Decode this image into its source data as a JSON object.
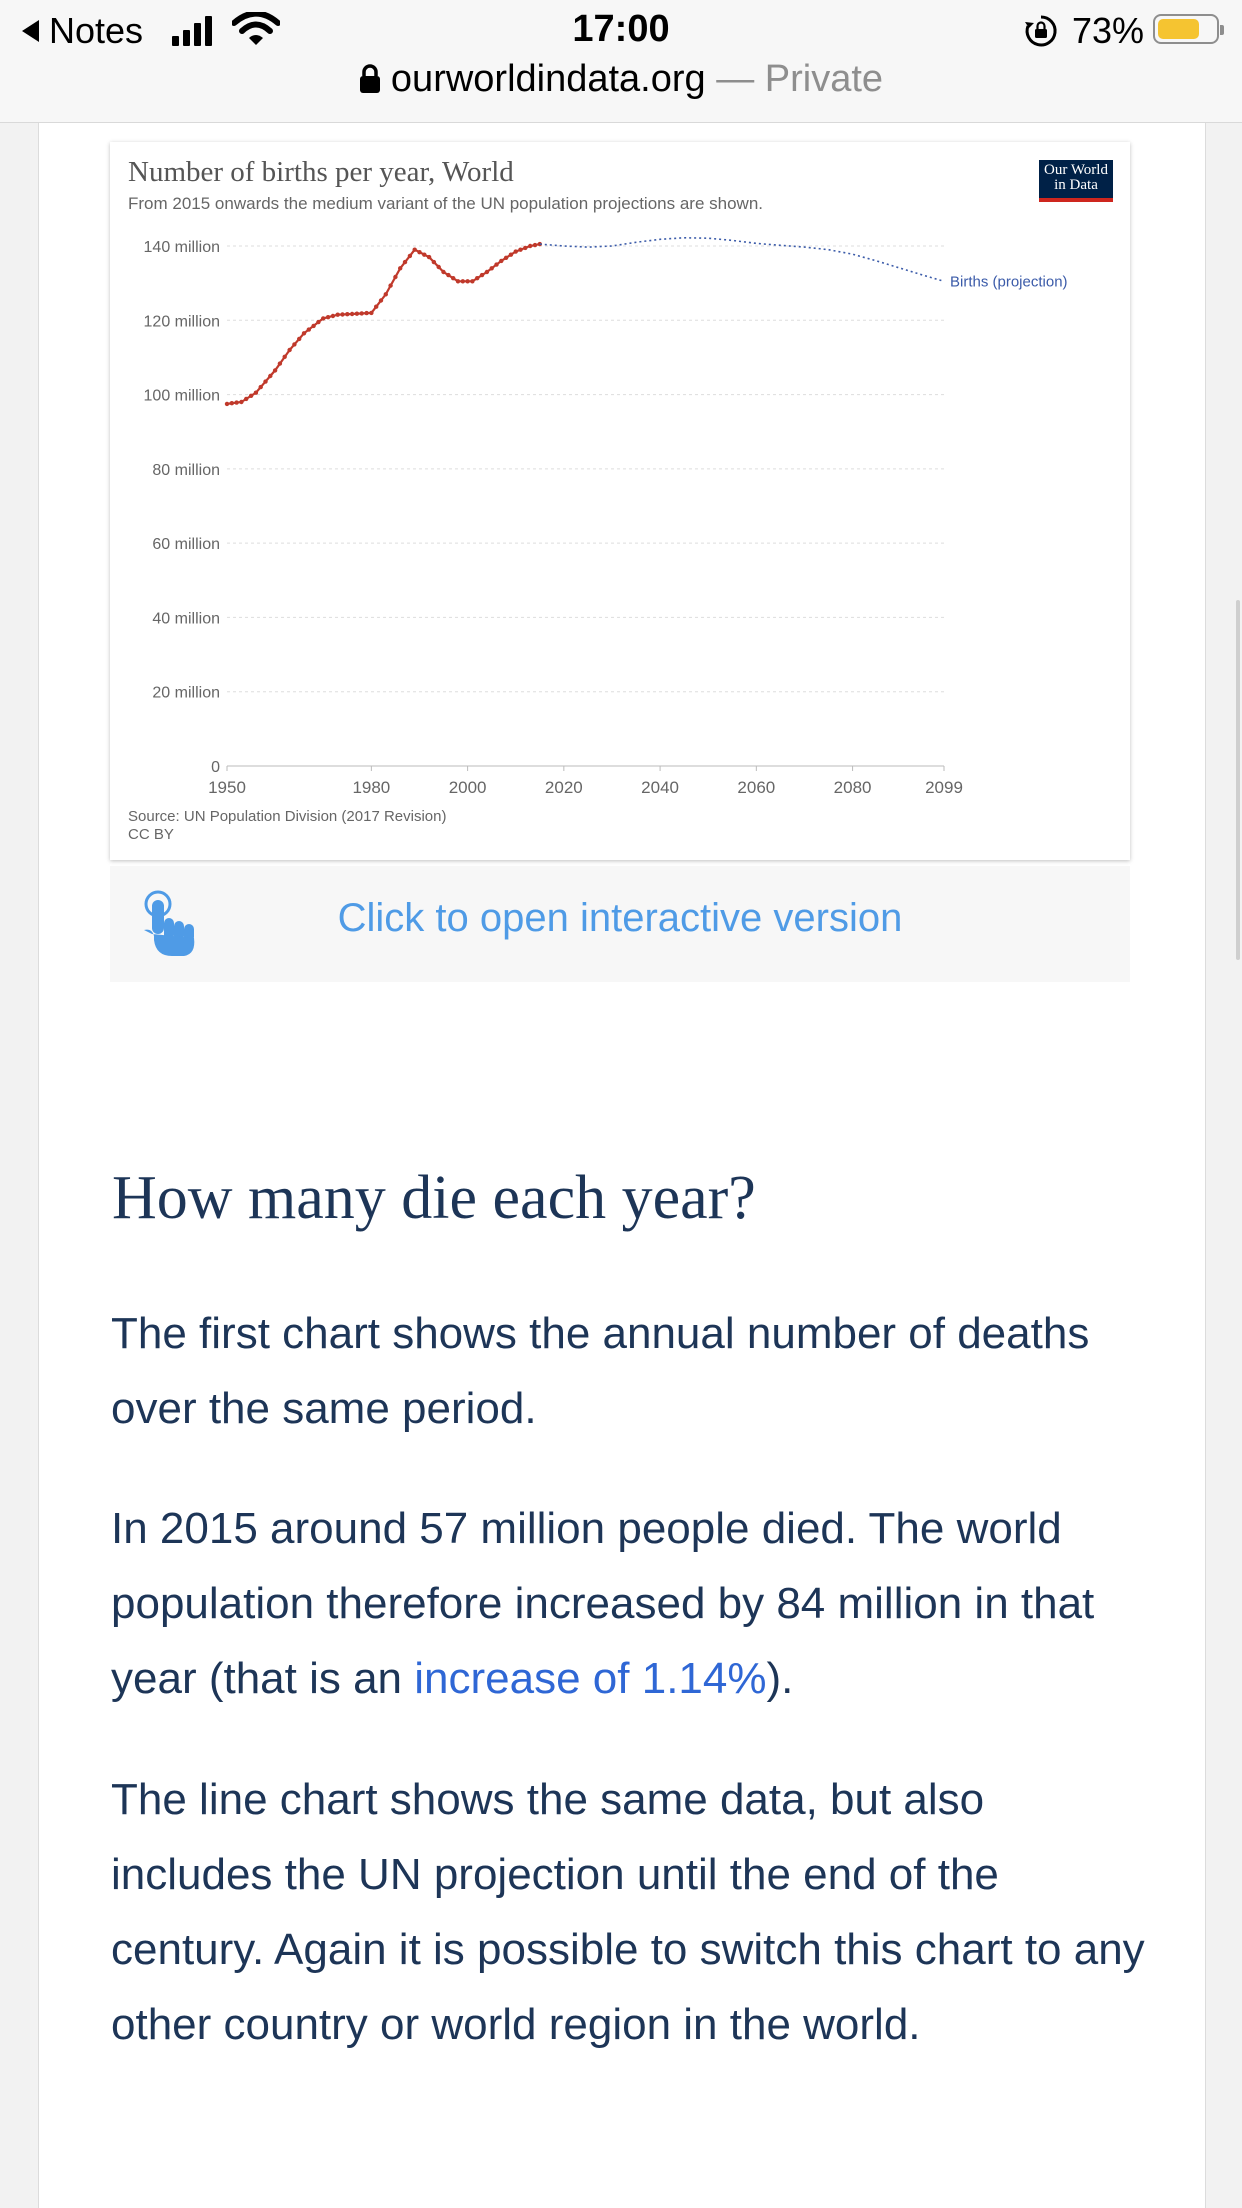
{
  "status_bar": {
    "back_label": "Notes",
    "time": "17:00",
    "battery_percent": "73%",
    "battery_level": 0.73,
    "battery_color": "#f5c431"
  },
  "address_bar": {
    "domain": "ourworldindata.org",
    "separator": "—",
    "mode": "Private"
  },
  "chart": {
    "logo_line1": "Our World",
    "logo_line2": "in Data",
    "source": "Source: UN Population Division (2017 Revision)",
    "license": "CC BY",
    "colors": {
      "historical": "#c0392b",
      "projection": "#3b5ba9"
    }
  },
  "chart_data": {
    "type": "line",
    "title": "Number of births per year, World",
    "subtitle": "From 2015 onwards the medium variant of the UN population projections are shown.",
    "xlabel": "",
    "ylabel": "",
    "xlim": [
      1950,
      2099
    ],
    "ylim": [
      0,
      140000000
    ],
    "x_ticks": [
      {
        "value": 1950,
        "label": "1950"
      },
      {
        "value": 1980,
        "label": "1980"
      },
      {
        "value": 2000,
        "label": "2000"
      },
      {
        "value": 2020,
        "label": "2020"
      },
      {
        "value": 2040,
        "label": "2040"
      },
      {
        "value": 2060,
        "label": "2060"
      },
      {
        "value": 2080,
        "label": "2080"
      },
      {
        "value": 2099,
        "label": "2099"
      }
    ],
    "y_ticks": [
      {
        "value": 0,
        "label": "0"
      },
      {
        "value": 20000000,
        "label": "20 million"
      },
      {
        "value": 40000000,
        "label": "40 million"
      },
      {
        "value": 60000000,
        "label": "60 million"
      },
      {
        "value": 80000000,
        "label": "80 million"
      },
      {
        "value": 100000000,
        "label": "100 million"
      },
      {
        "value": 120000000,
        "label": "120 million"
      },
      {
        "value": 140000000,
        "label": "140 million"
      }
    ],
    "grid": true,
    "series": [
      {
        "style": "historical",
        "x": [
          1950,
          1953,
          1956,
          1960,
          1963,
          1966,
          1970,
          1973,
          1976,
          1980,
          1983,
          1986,
          1989,
          1992,
          1995,
          1998,
          2001,
          2004,
          2007,
          2010,
          2013,
          2015
        ],
        "y": [
          97500000,
          98000000,
          100500000,
          106500000,
          112000000,
          116500000,
          120500000,
          121500000,
          121700000,
          122000000,
          127000000,
          134000000,
          139000000,
          137000000,
          133000000,
          130500000,
          130500000,
          133000000,
          136000000,
          138500000,
          140000000,
          140500000
        ]
      },
      {
        "name": "Births (projection)",
        "style": "projection",
        "x": [
          2015,
          2020,
          2025,
          2030,
          2035,
          2040,
          2045,
          2050,
          2055,
          2060,
          2065,
          2070,
          2075,
          2080,
          2085,
          2090,
          2095,
          2099
        ],
        "y": [
          140500000,
          140000000,
          139700000,
          140000000,
          141000000,
          141800000,
          142200000,
          142100000,
          141500000,
          140700000,
          140200000,
          139700000,
          139000000,
          137800000,
          136000000,
          134000000,
          132000000,
          130500000
        ]
      }
    ]
  },
  "open_interactive": {
    "label": "Click to open interactive version"
  },
  "article": {
    "heading": "How many die each year?",
    "p1": "The first chart shows the annual number of deaths over the same period.",
    "p2_before": "In 2015 around 57 million people died. The world population therefore increased by 84 million in that year (that is an ",
    "p2_link": "increase of 1.14%",
    "p2_after": ").",
    "p3": "The line chart shows the same data, but also includes the UN projection until the end of the century. Again it is possible to switch this chart to any other country or world region in the world."
  }
}
